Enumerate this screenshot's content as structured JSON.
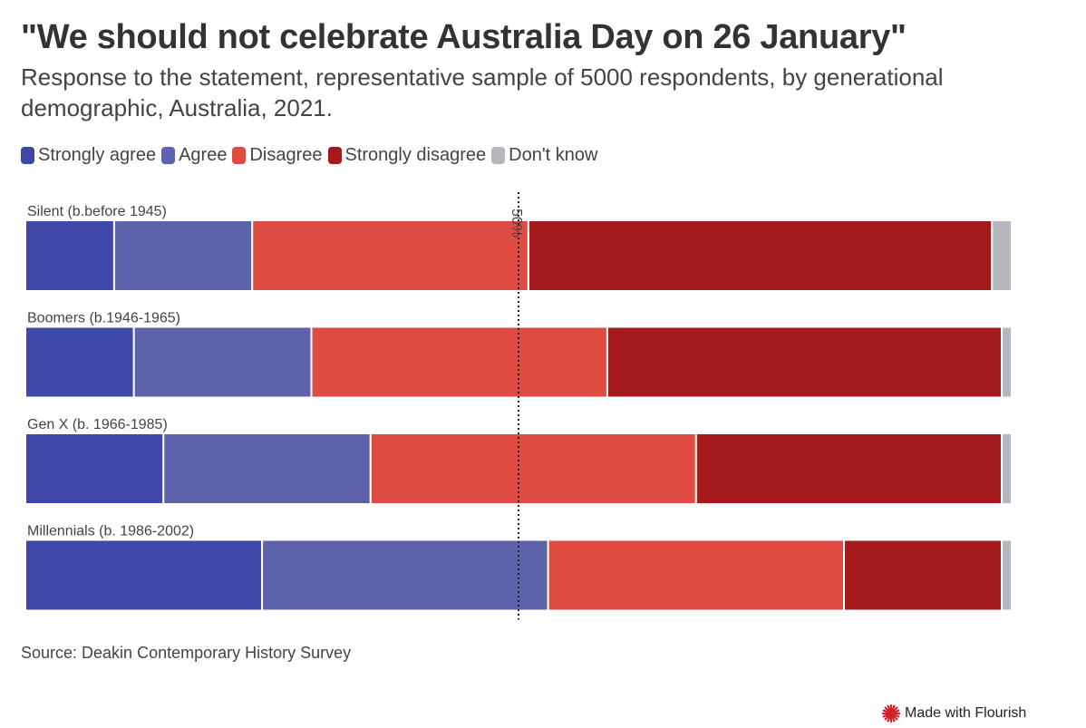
{
  "header": {
    "title": "\"We should not celebrate Australia Day on 26 January\"",
    "subtitle": "Response to the statement, representative sample of 5000 respondents, by generational demographic, Australia, 2021."
  },
  "footer": {
    "source": "Source: Deakin Contemporary History Survey",
    "credit": "Made with Flourish",
    "credit_icon": "flourish-star-icon"
  },
  "chart_data": {
    "type": "bar",
    "orientation": "horizontal",
    "stacked": true,
    "normalized": true,
    "title": "\"We should not celebrate Australia Day on 26 January\"",
    "subtitle": "Response to the statement, representative sample of 5000 respondents, by generational demographic, Australia, 2021.",
    "categories": [
      "Silent (b.before 1945)",
      "Boomers (b.1946-1965)",
      "Gen X (b. 1966-1985)",
      "Millennials (b. 1986-2002)"
    ],
    "series": [
      {
        "name": "Strongly agree",
        "color": "#3f48a8",
        "values": [
          9,
          11,
          14,
          24
        ]
      },
      {
        "name": "Agree",
        "color": "#5c63ab",
        "values": [
          14,
          18,
          21,
          29
        ]
      },
      {
        "name": "Disagree",
        "color": "#de4b42",
        "values": [
          28,
          30,
          33,
          30
        ]
      },
      {
        "name": "Strongly disagree",
        "color": "#a3191c",
        "values": [
          47,
          40,
          31,
          16
        ]
      },
      {
        "name": "Don't know",
        "color": "#b5b7bf",
        "values": [
          2,
          1,
          1,
          1
        ]
      }
    ],
    "xlim": [
      0,
      100
    ],
    "reference_line": {
      "value": 50,
      "label": "50%"
    },
    "legend_position": "top-left",
    "grid": false
  }
}
